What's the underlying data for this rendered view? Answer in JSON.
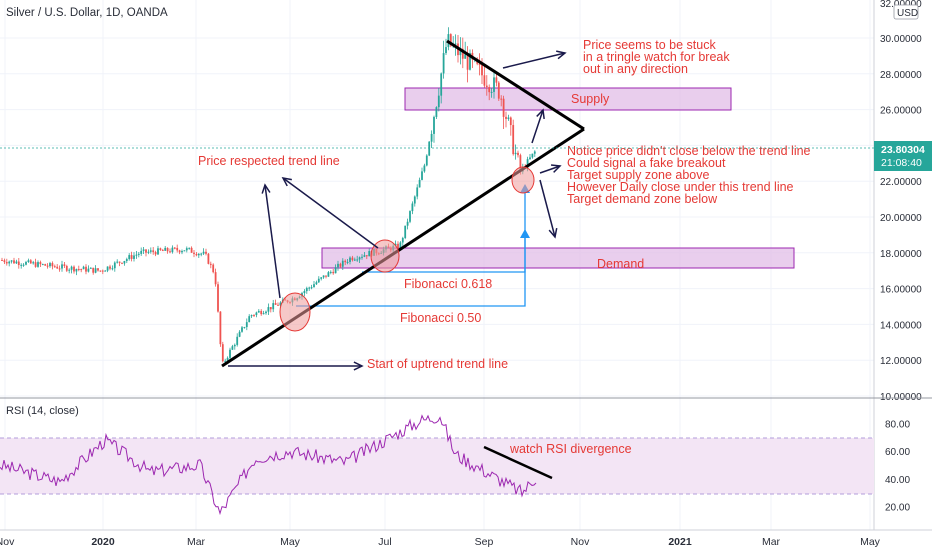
{
  "header": {
    "symbol_title": "Silver / U.S. Dollar, 1D, OANDA",
    "currency_badge": "USD",
    "top_price_label": "32.00000"
  },
  "price_tag": {
    "value": "23.80304",
    "countdown": "21:08:40"
  },
  "rsi_panel": {
    "title": "RSI (14, close)"
  },
  "annotations": {
    "respected": "Price respected trend line",
    "stuck": [
      "Price seems to be stuck",
      "in a tringle watch for break",
      "out in any direction"
    ],
    "supply": "Supply",
    "demand": "Demand",
    "notice": [
      "Notice price didn't close below the trend line",
      "Could signal a fake breakout",
      "Target supply zone above",
      "However Daily close under this trend line",
      "Target demand zone below"
    ],
    "fib618": "Fibonacci 0.618",
    "fib50": "Fibonacci 0.50",
    "start": "Start of uptrend trend line",
    "rsi_div": "watch RSI divergence"
  },
  "colors": {
    "annotation_text": "#e53935",
    "zone_fill": "#e1bee7",
    "zone_border": "#9c27b0",
    "fib_line": "#2196f3",
    "candle_up": "#26a69a",
    "candle_down": "#ef5350",
    "rsi_line": "#9c27b0",
    "rsi_band": "#f3e5f5"
  },
  "chart_data": [
    {
      "type": "candlestick",
      "title": "Silver / U.S. Dollar, 1D, OANDA",
      "x_tick_labels": [
        "Nov",
        "2020",
        "Mar",
        "May",
        "Jul",
        "Sep",
        "Nov",
        "2021",
        "Mar",
        "May"
      ],
      "y_tick_labels": [
        "10.00000",
        "12.00000",
        "14.00000",
        "16.00000",
        "18.00000",
        "20.00000",
        "22.00000",
        "24.00000",
        "26.00000",
        "28.00000",
        "30.00000"
      ],
      "ylim": [
        10,
        32
      ],
      "last_price": 23.80304,
      "series": [
        {
          "x": [
            "Oct 2019",
            "Nov",
            "Dec",
            "Jan 2020",
            "Feb",
            "late Feb",
            "Mar",
            "mid Mar",
            "Apr",
            "May",
            "Jun",
            "Jul",
            "late Jul",
            "Aug",
            "Sep",
            "late Sep",
            "Oct"
          ],
          "values": [
            17.6,
            17.2,
            17.0,
            18.0,
            18.2,
            17.9,
            16.8,
            11.7,
            14.5,
            15.5,
            17.7,
            18.4,
            23.0,
            29.8,
            27.0,
            22.5,
            23.8
          ]
        }
      ],
      "zones": [
        {
          "name": "Supply",
          "from": 26.0,
          "to": 27.2
        },
        {
          "name": "Demand",
          "from": 17.1,
          "to": 18.3
        }
      ],
      "fibonacci": [
        {
          "level": "0.618",
          "price": 17.0
        },
        {
          "level": "0.50",
          "price": 15.0
        }
      ]
    },
    {
      "type": "line",
      "title": "RSI (14, close)",
      "y_tick_labels": [
        "20.00",
        "40.00",
        "60.00",
        "80.00"
      ],
      "ylim": [
        10,
        95
      ],
      "band": [
        30,
        70
      ],
      "series": [
        {
          "x": [
            "Oct 2019",
            "Dec",
            "Jan 2020",
            "Feb",
            "Mar",
            "mid Mar",
            "Apr",
            "May",
            "Jun",
            "Jul",
            "late Jul",
            "Aug",
            "Sep",
            "late Sep",
            "Oct"
          ],
          "values": [
            50,
            38,
            68,
            45,
            50,
            15,
            55,
            60,
            52,
            70,
            82,
            86,
            58,
            30,
            42
          ]
        }
      ]
    }
  ]
}
